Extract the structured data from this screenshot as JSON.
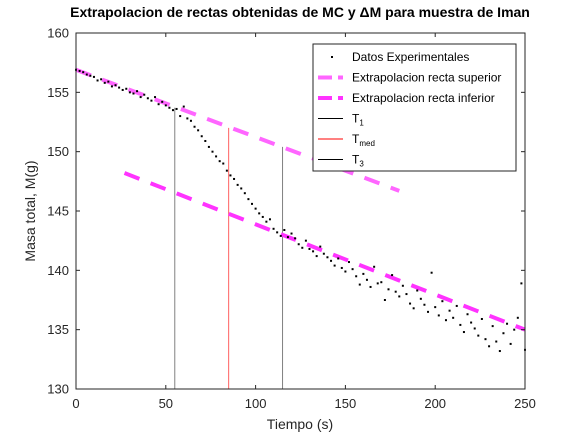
{
  "chart_data": {
    "type": "scatter",
    "title": "Extrapolacion de rectas obtenidas de MC y ΔM para muestra de Iman",
    "xlabel": "Tiempo (s)",
    "ylabel": "Masa total, M(g)",
    "xlim": [
      0,
      250
    ],
    "ylim": [
      130,
      160
    ],
    "xticks": [
      0,
      50,
      100,
      150,
      200,
      250
    ],
    "yticks": [
      130,
      135,
      140,
      145,
      150,
      155,
      160
    ],
    "legend_position": "top-right",
    "grid": false,
    "legend": [
      {
        "label": "Datos Experimentales",
        "symbol": "dot",
        "color": "#000000"
      },
      {
        "label": "Extrapolacion recta superior",
        "symbol": "dashed-line",
        "color": "#ff66ff"
      },
      {
        "label": "Extrapolacion recta inferior",
        "symbol": "dashed-line",
        "color": "#ff33ff"
      },
      {
        "label": "T",
        "sub": "1",
        "symbol": "line",
        "color": "#000000"
      },
      {
        "label": "T",
        "sub": "med",
        "symbol": "line",
        "color": "#ff0000"
      },
      {
        "label": "T",
        "sub": "3",
        "symbol": "line",
        "color": "#000000"
      }
    ],
    "series": [
      {
        "name": "Datos Experimentales",
        "type": "scatter",
        "color": "#000000",
        "x": [
          0,
          2,
          4,
          6,
          8,
          10,
          12,
          14,
          16,
          18,
          20,
          22,
          24,
          26,
          28,
          30,
          32,
          34,
          36,
          38,
          40,
          42,
          44,
          46,
          48,
          50,
          52,
          54,
          56,
          58,
          60,
          62,
          64,
          66,
          68,
          70,
          72,
          74,
          76,
          78,
          80,
          82,
          84,
          86,
          88,
          90,
          92,
          94,
          96,
          98,
          100,
          102,
          104,
          106,
          108,
          110,
          112,
          114,
          116,
          118,
          120,
          122,
          124,
          126,
          128,
          130,
          132,
          134,
          136,
          138,
          140,
          142,
          144,
          146,
          148,
          150,
          152,
          154,
          156,
          158,
          160,
          162,
          164,
          166,
          168,
          170,
          172,
          174,
          176,
          178,
          180,
          182,
          184,
          186,
          188,
          190,
          192,
          194,
          196,
          198,
          200,
          202,
          204,
          206,
          208,
          210,
          212,
          214,
          216,
          218,
          220,
          222,
          224,
          226,
          228,
          230,
          232,
          234,
          236,
          238,
          240,
          242,
          244,
          246,
          248,
          250
        ],
        "y": [
          156.9,
          156.8,
          156.7,
          156.5,
          156.4,
          156.3,
          156.0,
          156.1,
          155.8,
          155.9,
          155.5,
          155.6,
          155.4,
          155.2,
          155.3,
          155.0,
          154.9,
          155.1,
          154.6,
          154.8,
          154.5,
          154.3,
          154.6,
          154.0,
          154.2,
          153.9,
          153.7,
          153.5,
          153.6,
          153.0,
          153.8,
          152.8,
          152.6,
          152.1,
          151.8,
          151.3,
          150.9,
          150.4,
          150.0,
          149.6,
          149.2,
          149.0,
          148.4,
          148.0,
          147.7,
          147.2,
          146.9,
          146.5,
          146.0,
          145.6,
          145.2,
          144.8,
          144.5,
          144.1,
          144.3,
          143.5,
          143.2,
          142.9,
          143.4,
          142.8,
          143.1,
          142.7,
          142.2,
          141.9,
          142.5,
          141.8,
          141.6,
          141.2,
          142.0,
          141.4,
          141.1,
          140.8,
          140.4,
          141.0,
          140.2,
          139.9,
          140.7,
          140.1,
          139.5,
          138.8,
          139.7,
          139.2,
          138.6,
          140.3,
          138.9,
          139.0,
          137.5,
          138.4,
          139.6,
          138.2,
          137.8,
          138.7,
          138.0,
          137.2,
          136.8,
          138.3,
          137.6,
          137.1,
          136.5,
          139.8,
          136.9,
          136.2,
          137.4,
          135.8,
          136.6,
          136.0,
          137.0,
          135.4,
          134.8,
          136.3,
          135.6,
          135.1,
          134.5,
          135.9,
          134.2,
          133.6,
          135.3,
          134.0,
          133.2,
          134.7,
          135.5,
          133.8,
          135.0,
          136.0,
          138.9,
          133.3
        ]
      },
      {
        "name": "Extrapolacion recta superior",
        "type": "dashed-line",
        "color": "#ff66ff",
        "x": [
          0,
          180
        ],
        "y": [
          156.9,
          146.7
        ]
      },
      {
        "name": "Extrapolacion recta inferior",
        "type": "dashed-line",
        "color": "#ff33ff",
        "x": [
          27,
          250
        ],
        "y": [
          148.2,
          135.0
        ]
      },
      {
        "name": "T1",
        "type": "vline",
        "color": "#000000",
        "x": [
          55,
          55
        ],
        "y": [
          130,
          153.7
        ]
      },
      {
        "name": "Tmed",
        "type": "vline",
        "color": "#ff0000",
        "x": [
          85,
          85
        ],
        "y": [
          130,
          152.0
        ]
      },
      {
        "name": "T3",
        "type": "vline",
        "color": "#000000",
        "x": [
          115,
          115
        ],
        "y": [
          130,
          150.4
        ]
      }
    ]
  }
}
